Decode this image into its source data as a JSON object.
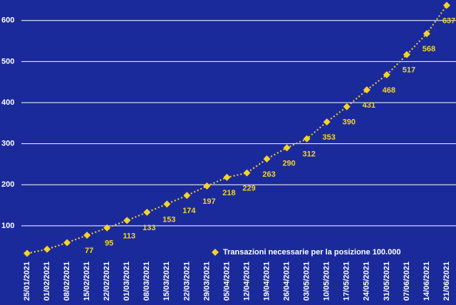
{
  "chart_data": {
    "type": "line",
    "categories": [
      "25/01/2021",
      "01/02/2021",
      "08/02/2021",
      "15/02/2021",
      "22/02/2021",
      "01/03/2021",
      "08/03/2021",
      "15/03/2021",
      "22/03/2021",
      "29/03/2021",
      "05/04/2021",
      "12/04/2021",
      "19/04/2021",
      "26/04/2021",
      "03/05/2021",
      "10/05/2021",
      "17/05/2021",
      "24/05/2021",
      "31/05/2021",
      "07/06/2021",
      "14/06/2021",
      "21/06/2021"
    ],
    "series": [
      {
        "name": "Transazioni necessarie per la posizione 100.000",
        "color": "#f5d327",
        "values": [
          33,
          43,
          59,
          77,
          95,
          113,
          133,
          153,
          174,
          197,
          218,
          229,
          263,
          290,
          312,
          353,
          390,
          431,
          468,
          517,
          568,
          637
        ],
        "value_labels": [
          null,
          null,
          null,
          "77",
          "95",
          "113",
          "133",
          "153",
          "174",
          "197",
          "218",
          "229",
          "263",
          "290",
          "312",
          "353",
          "390",
          "431",
          "468",
          "517",
          "568",
          "637"
        ]
      }
    ],
    "ylim": [
      20,
      650
    ],
    "yticks": [
      100,
      200,
      300,
      400,
      500,
      600
    ],
    "grid": true,
    "legend": "bottom-right"
  }
}
